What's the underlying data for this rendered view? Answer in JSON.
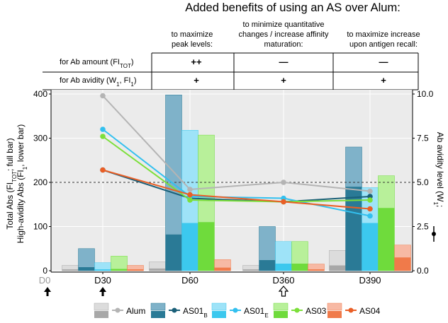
{
  "chart_data": {
    "type": "bar",
    "title": "Added benefits of using an AS over Alum:",
    "benefit_table": {
      "columns": [
        "to maximize\npeak levels:",
        "to minimize quantitative\nchanges / increase affinity\nmaturation:",
        "to maximize increase\nupon antigen recall:"
      ],
      "rows": [
        {
          "label": "for Ab amount (FI",
          "sub": "TOT",
          "tail": ")",
          "cells": [
            "++",
            "—",
            "—"
          ]
        },
        {
          "label": "for Ab avidity (W",
          "sub": "1",
          "mid": ", FI",
          "sub2": "1",
          "tail": ")",
          "cells": [
            "+",
            "+",
            "+"
          ]
        }
      ]
    },
    "categories": [
      "D0",
      "D30",
      "D60",
      "D360",
      "D390"
    ],
    "arrows": {
      "D0": "filled",
      "D30": "filled",
      "D360": "open"
    },
    "ylabel_left": [
      "Total Abs (FI",
      "TOT",
      "; full bar)"
    ],
    "ylabel_left2": [
      "High-avidity Abs (FI",
      "1",
      ", lower bar)"
    ],
    "ylabel_right": [
      "Ab avidity level (W",
      "1",
      ";"
    ],
    "ylim_left": [
      0,
      400
    ],
    "yticks_left": [
      "0",
      "100",
      "200",
      "300",
      "400"
    ],
    "ylim_right": [
      0,
      10
    ],
    "yticks_right": [
      "0.0",
      "2.5",
      "5.0",
      "7.5",
      "10.0"
    ],
    "reference_line_left": 200,
    "series": [
      {
        "name": "Alum",
        "sub": "",
        "total": [
          0,
          12,
          20,
          12,
          46
        ],
        "high": [
          0,
          3,
          5,
          3,
          12
        ],
        "avidity": [
          null,
          9.9,
          4.6,
          5.0,
          4.5
        ]
      },
      {
        "name": "AS01",
        "sub": "B",
        "total": [
          0,
          50,
          398,
          100,
          280
        ],
        "high": [
          0,
          8,
          82,
          24,
          190
        ],
        "avidity": [
          null,
          5.7,
          4.1,
          3.9,
          4.2
        ]
      },
      {
        "name": "AS01",
        "sub": "E",
        "total": [
          0,
          18,
          318,
          66,
          188
        ],
        "high": [
          0,
          3,
          108,
          16,
          108
        ],
        "avidity": [
          null,
          8.0,
          4.2,
          4.1,
          3.1
        ]
      },
      {
        "name": "AS03",
        "sub": "",
        "total": [
          0,
          33,
          307,
          66,
          215
        ],
        "high": [
          0,
          4,
          110,
          16,
          142
        ],
        "avidity": [
          null,
          7.6,
          4.0,
          3.9,
          4.0
        ]
      },
      {
        "name": "AS04",
        "sub": "",
        "total": [
          0,
          12,
          25,
          15,
          58
        ],
        "high": [
          0,
          3,
          7,
          3,
          30
        ],
        "avidity": [
          null,
          5.7,
          4.3,
          3.9,
          3.5
        ]
      }
    ],
    "colors": {
      "Alum": {
        "light": "#dcdcdc",
        "dark": "#a8a8a8",
        "line": "#b4b4b4"
      },
      "AS01B": {
        "light": "#7fb2c9",
        "dark": "#2a7a96",
        "line": "#1a5f78"
      },
      "AS01E": {
        "light": "#9ee3f8",
        "dark": "#3cc8ee",
        "line": "#33c0ef"
      },
      "AS03": {
        "light": "#b8f09a",
        "dark": "#6fdb3c",
        "line": "#7cdf3a"
      },
      "AS04": {
        "light": "#f7b9a4",
        "dark": "#f07a4a",
        "line": "#ea5f26"
      }
    }
  }
}
